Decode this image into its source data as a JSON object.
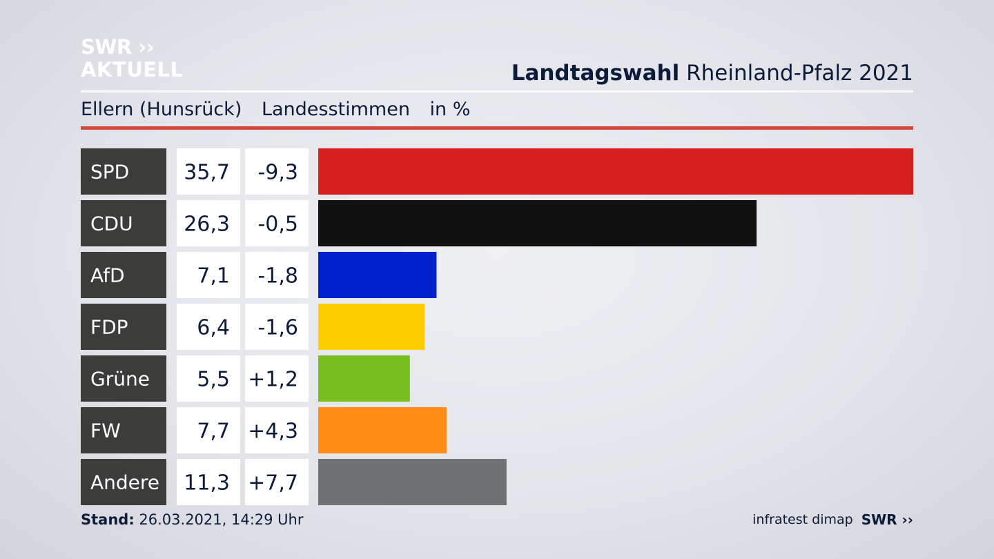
{
  "logo": {
    "line1": "SWR ››",
    "line2": "AKTUELL"
  },
  "headline": {
    "bold": "Landtagswahl",
    "rest": " Rheinland-Pfalz 2021"
  },
  "subline": {
    "place": "Ellern (Hunsrück)",
    "measure": "Landesstimmen",
    "unit": "in %"
  },
  "footer": {
    "stand_label": "Stand:",
    "stand_value": " 26.03.2021, 14:29 Uhr",
    "source": "infratest dimap",
    "brand": "SWR ››"
  },
  "chart_data": {
    "type": "bar",
    "orientation": "horizontal",
    "categories": [
      "SPD",
      "CDU",
      "AfD",
      "FDP",
      "Grüne",
      "FW",
      "Andere"
    ],
    "values": [
      35.7,
      26.3,
      7.1,
      6.4,
      5.5,
      7.7,
      11.3
    ],
    "value_labels": [
      "35,7",
      "26,3",
      "7,1",
      "6,4",
      "5,5",
      "7,7",
      "11,3"
    ],
    "change_values": [
      -9.3,
      -0.5,
      -1.8,
      -1.6,
      1.2,
      4.3,
      7.7
    ],
    "change_labels": [
      "-9,3",
      "-0,5",
      "-1,8",
      "-1,6",
      "+1,2",
      "+4,3",
      "+7,7"
    ],
    "colors": [
      "#d61f1f",
      "#111111",
      "#0021cc",
      "#ffcc00",
      "#78be1e",
      "#ff8c14",
      "#707173"
    ],
    "xlim": [
      0,
      35.7
    ],
    "grid": false,
    "legend": "none"
  }
}
